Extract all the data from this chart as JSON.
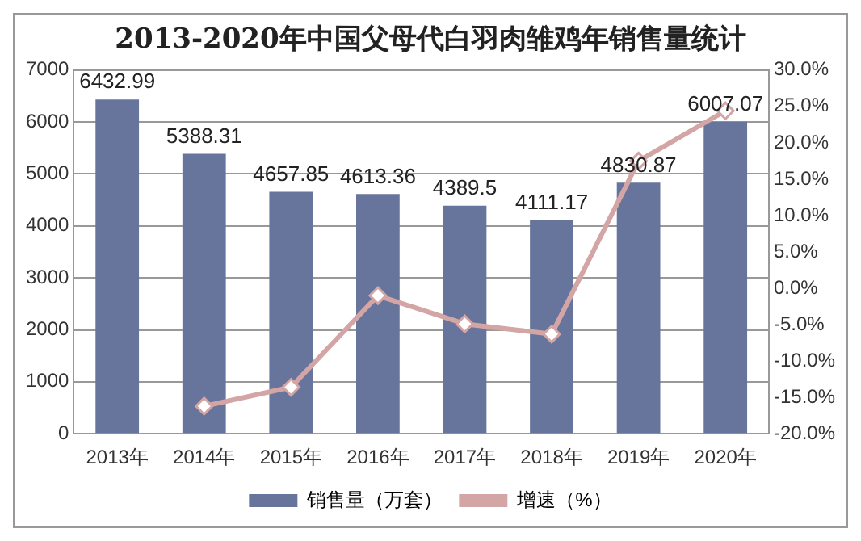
{
  "chart_data": {
    "type": "bar",
    "title": "2013-2020年中国父母代白羽肉雏鸡年销售量统计",
    "categories": [
      "2013年",
      "2014年",
      "2015年",
      "2016年",
      "2017年",
      "2018年",
      "2019年",
      "2020年"
    ],
    "series": [
      {
        "name": "销售量（万套）",
        "color": "#67749c",
        "values": [
          6432.99,
          5388.31,
          4657.85,
          4613.36,
          4389.5,
          4111.17,
          4830.87,
          6007.07
        ],
        "value_labels": [
          "6432.99",
          "5388.31",
          "4657.85",
          "4613.36",
          "4389.5",
          "4111.17",
          "4830.87",
          "6007.07"
        ]
      },
      {
        "name": "增速（%）",
        "type": "line",
        "axis": "y2",
        "color": "#d4a5a5",
        "marker": "diamond",
        "values": [
          null,
          -16.2,
          -13.6,
          -1.0,
          -4.9,
          -6.3,
          17.5,
          24.4
        ]
      }
    ],
    "ylim": [
      0,
      7000
    ],
    "yticks": [
      0,
      1000,
      2000,
      3000,
      4000,
      5000,
      6000,
      7000
    ],
    "y2lim": [
      -20,
      30
    ],
    "y2ticks": [
      {
        "value": -20,
        "label": "-20.0%"
      },
      {
        "value": -15,
        "label": "-15.0%"
      },
      {
        "value": -10,
        "label": "-10.0%"
      },
      {
        "value": -5,
        "label": "-5.0%"
      },
      {
        "value": 0,
        "label": "0.0%"
      },
      {
        "value": 5,
        "label": "5.0%"
      },
      {
        "value": 10,
        "label": "10.0%"
      },
      {
        "value": 15,
        "label": "15.0%"
      },
      {
        "value": 20,
        "label": "20.0%"
      },
      {
        "value": 25,
        "label": "25.0%"
      },
      {
        "value": 30,
        "label": "30.0%"
      }
    ],
    "grid": "y",
    "legend": "bottom"
  }
}
